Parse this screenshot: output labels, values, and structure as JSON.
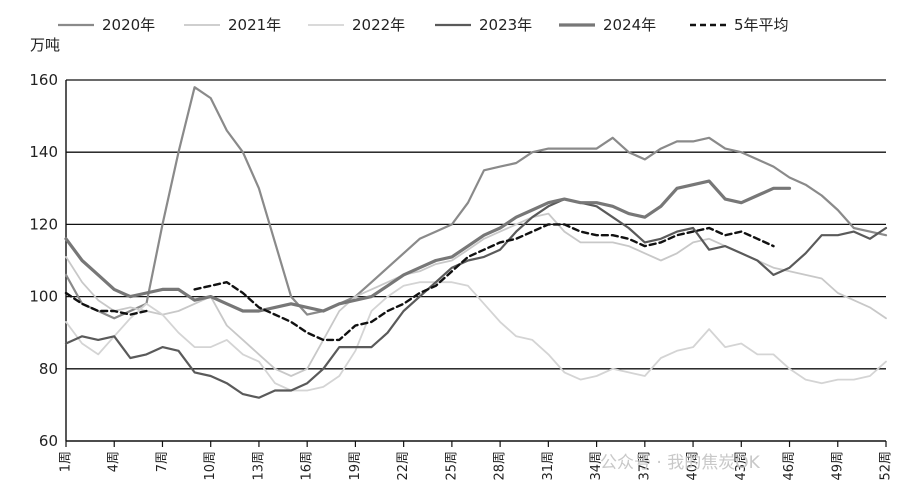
{
  "chart_data": {
    "type": "line",
    "title": "",
    "unit_label": "万吨",
    "xlabel": "",
    "ylabel": "",
    "ylim": [
      60,
      160
    ],
    "yticks": [
      60,
      80,
      100,
      120,
      140,
      160
    ],
    "grid": "horizontal",
    "legend_position": "top",
    "x_tick_labels": [
      "1周",
      "4周",
      "7周",
      "10周",
      "13周",
      "16周",
      "19周",
      "22周",
      "25周",
      "28周",
      "31周",
      "34周",
      "37周",
      "40周",
      "43周",
      "46周",
      "49周",
      "52周"
    ],
    "x_tick_weeks": [
      1,
      4,
      7,
      10,
      13,
      16,
      19,
      22,
      25,
      28,
      31,
      34,
      37,
      40,
      43,
      46,
      49,
      52
    ],
    "series": [
      {
        "name": "2020年",
        "color": "#8a8a8a",
        "width": 2.2,
        "dash": "",
        "values": [
          106,
          98,
          96,
          94,
          96,
          98,
          120,
          140,
          158,
          155,
          146,
          140,
          130,
          115,
          100,
          95,
          96,
          98,
          100,
          104,
          108,
          112,
          116,
          118,
          120,
          126,
          135,
          136,
          137,
          140,
          141,
          141,
          141,
          141,
          144,
          140,
          138,
          141,
          143,
          143,
          144,
          141,
          140,
          138,
          136,
          133,
          131,
          128,
          124,
          119,
          118,
          117
        ]
      },
      {
        "name": "2021年",
        "color": "#c8c8c8",
        "width": 1.8,
        "dash": "",
        "values": [
          111,
          104,
          99,
          96,
          97,
          96,
          95,
          96,
          98,
          100,
          92,
          88,
          84,
          80,
          78,
          80,
          88,
          96,
          100,
          102,
          104,
          106,
          107,
          109,
          110,
          113,
          116,
          118,
          120,
          122,
          123,
          118,
          115,
          115,
          115,
          114,
          112,
          110,
          112,
          115,
          116,
          114,
          112,
          110,
          108,
          107,
          106,
          105,
          101,
          99,
          97,
          94
        ]
      },
      {
        "name": "2022年",
        "color": "#d4d4d4",
        "width": 1.8,
        "dash": "",
        "values": [
          93,
          87,
          84,
          89,
          94,
          98,
          95,
          90,
          86,
          86,
          88,
          84,
          82,
          76,
          74,
          74,
          75,
          78,
          85,
          96,
          100,
          103,
          104,
          104,
          104,
          103,
          98,
          93,
          89,
          88,
          84,
          79,
          77,
          78,
          80,
          79,
          78,
          83,
          85,
          86,
          91,
          86,
          87,
          84,
          84,
          80,
          77,
          76,
          77,
          77,
          78,
          82
        ]
      },
      {
        "name": "2023年",
        "color": "#5a5a5a",
        "width": 2.2,
        "dash": "",
        "values": [
          87,
          89,
          88,
          89,
          83,
          84,
          86,
          85,
          79,
          78,
          76,
          73,
          72,
          74,
          74,
          76,
          80,
          86,
          86,
          86,
          90,
          96,
          100,
          104,
          108,
          110,
          111,
          113,
          118,
          122,
          125,
          127,
          126,
          125,
          122,
          119,
          115,
          116,
          118,
          119,
          113,
          114,
          112,
          110,
          106,
          108,
          112,
          117,
          117,
          118,
          116,
          119
        ]
      },
      {
        "name": "2024年",
        "color": "#777777",
        "width": 3.2,
        "dash": "",
        "values": [
          116,
          110,
          106,
          102,
          100,
          101,
          102,
          102,
          99,
          100,
          98,
          96,
          96,
          97,
          98,
          97,
          96,
          98,
          99,
          100,
          103,
          106,
          108,
          110,
          111,
          114,
          117,
          119,
          122,
          124,
          126,
          127,
          126,
          126,
          125,
          123,
          122,
          125,
          130,
          131,
          132,
          127,
          126,
          128,
          130,
          130
        ]
      },
      {
        "name": "5年平均",
        "color": "#111111",
        "width": 2.4,
        "dash": "6,4",
        "values": [
          101,
          98,
          96,
          96,
          95,
          96,
          null,
          null,
          102,
          103,
          104,
          101,
          97,
          95,
          93,
          90,
          88,
          88,
          92,
          93,
          96,
          98,
          101,
          103,
          107,
          111,
          113,
          115,
          116,
          118,
          120,
          120,
          118,
          117,
          117,
          116,
          114,
          115,
          117,
          118,
          119,
          117,
          118,
          116,
          114
        ]
      }
    ],
    "watermark": "公众号 · 我的焦炭OK"
  }
}
